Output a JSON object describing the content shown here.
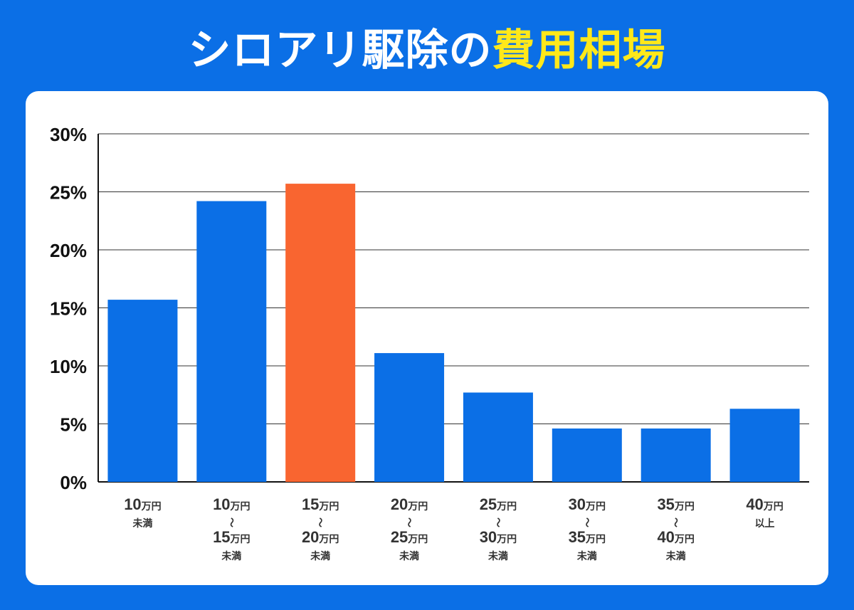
{
  "title": {
    "main": "シロアリ駆除の",
    "highlight": "費用相場"
  },
  "colors": {
    "background": "#0b6fe6",
    "bar": "#0b6fe6",
    "highlight_bar": "#f96530",
    "title_highlight": "#ffe81a"
  },
  "chart_data": {
    "type": "bar",
    "categories": [
      [
        "10万円",
        "未満"
      ],
      [
        "10万円",
        "〜",
        "15万円",
        "未満"
      ],
      [
        "15万円",
        "〜",
        "20万円",
        "未満"
      ],
      [
        "20万円",
        "〜",
        "25万円",
        "未満"
      ],
      [
        "25万円",
        "〜",
        "30万円",
        "未満"
      ],
      [
        "30万円",
        "〜",
        "35万円",
        "未満"
      ],
      [
        "35万円",
        "〜",
        "40万円",
        "未満"
      ],
      [
        "40万円",
        "以上"
      ]
    ],
    "values": [
      15.7,
      24.2,
      25.7,
      11.1,
      7.7,
      4.6,
      4.6,
      6.3
    ],
    "highlight_index": 2,
    "ylim": [
      0,
      30
    ],
    "yticks": [
      "0%",
      "5%",
      "10%",
      "15%",
      "20%",
      "25%",
      "30%"
    ],
    "grid": true,
    "xlabel": "",
    "ylabel": ""
  }
}
